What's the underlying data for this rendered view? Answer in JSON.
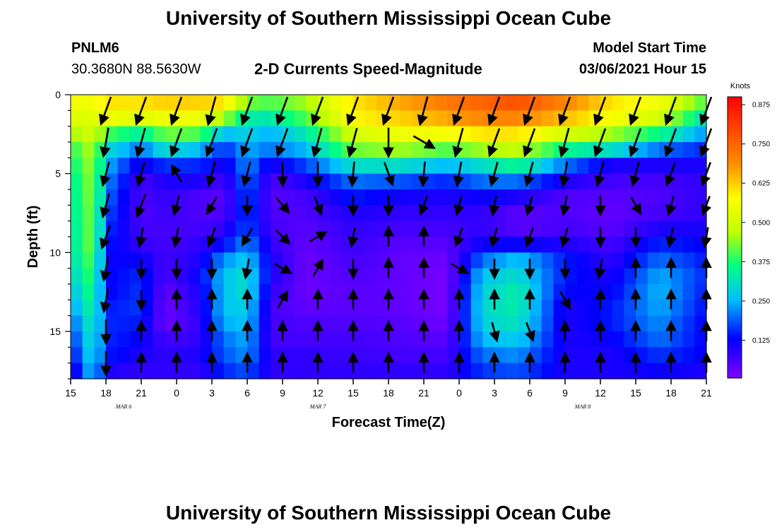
{
  "header": {
    "title_top": "University of Southern Mississippi Ocean Cube",
    "title_bottom": "University of Southern Mississippi Ocean Cube",
    "station_id": "PNLM6",
    "station_coords": "30.3680N 88.5630W",
    "plot_title": "2-D Currents Speed-Magnitude",
    "model_start_label": "Model Start Time",
    "model_start_value": "03/06/2021 Hour 15"
  },
  "chart_data": {
    "type": "heatmap",
    "title": "2-D Currents Speed-Magnitude",
    "xlabel": "Forecast Time(Z)",
    "ylabel": "Depth (ft)",
    "x_tick_labels": [
      "15",
      "18",
      "21",
      "0",
      "3",
      "6",
      "9",
      "12",
      "15",
      "18",
      "21",
      "0",
      "3",
      "6",
      "9",
      "12",
      "15",
      "18",
      "21"
    ],
    "x_range_hours": [
      0,
      54
    ],
    "date_labels": [
      {
        "text": "MAR 6",
        "hour": 4.5
      },
      {
        "text": "MAR 7",
        "hour": 21
      },
      {
        "text": "MAR 8",
        "hour": 43.5
      }
    ],
    "y_ticks": [
      0,
      5,
      10,
      15
    ],
    "y_range_ft": [
      0,
      18
    ],
    "colorbar": {
      "unit_label": "Knots",
      "tick_labels": [
        "0.875",
        "0.750",
        "0.625",
        "0.500",
        "0.375",
        "0.250",
        "0.125"
      ],
      "range": [
        0,
        0.9
      ]
    },
    "depths_ft": [
      0.5,
      1.5,
      2.5,
      3.5,
      4.5,
      5.5,
      6.5,
      7.5,
      8.5,
      9.5,
      10.5,
      11.5,
      12.5,
      13.5,
      14.5,
      15.5,
      16.5,
      17.5
    ],
    "speed_profiles": [
      {
        "hour": 0,
        "speeds": [
          0.56,
          0.52,
          0.45,
          0.38,
          0.35,
          0.33,
          0.32,
          0.32,
          0.31,
          0.31,
          0.3,
          0.28,
          0.25,
          0.22,
          0.18,
          0.15,
          0.12,
          0.08
        ]
      },
      {
        "hour": 2,
        "speeds": [
          0.55,
          0.52,
          0.5,
          0.47,
          0.46,
          0.45,
          0.45,
          0.44,
          0.44,
          0.44,
          0.42,
          0.4,
          0.38,
          0.36,
          0.34,
          0.32,
          0.3,
          0.28
        ]
      },
      {
        "hour": 3,
        "speeds": [
          0.6,
          0.55,
          0.4,
          0.3,
          0.25,
          0.22,
          0.2,
          0.18,
          0.16,
          0.14,
          0.12,
          0.12,
          0.12,
          0.14,
          0.15,
          0.15,
          0.14,
          0.1
        ]
      },
      {
        "hour": 6,
        "speeds": [
          0.6,
          0.52,
          0.33,
          0.2,
          0.1,
          0.06,
          0.05,
          0.05,
          0.06,
          0.08,
          0.12,
          0.15,
          0.16,
          0.16,
          0.14,
          0.12,
          0.1,
          0.08
        ]
      },
      {
        "hour": 8,
        "speeds": [
          0.62,
          0.55,
          0.42,
          0.3,
          0.16,
          0.1,
          0.08,
          0.07,
          0.06,
          0.06,
          0.06,
          0.05,
          0.03,
          0.02,
          0.02,
          0.06,
          0.08,
          0.08
        ]
      },
      {
        "hour": 11,
        "speeds": [
          0.62,
          0.55,
          0.4,
          0.25,
          0.15,
          0.1,
          0.05,
          0.05,
          0.06,
          0.08,
          0.1,
          0.12,
          0.1,
          0.09,
          0.08,
          0.08,
          0.1,
          0.08
        ]
      },
      {
        "hour": 13,
        "speeds": [
          0.6,
          0.45,
          0.25,
          0.15,
          0.1,
          0.06,
          0.04,
          0.05,
          0.08,
          0.13,
          0.22,
          0.26,
          0.26,
          0.26,
          0.24,
          0.2,
          0.18,
          0.15
        ]
      },
      {
        "hour": 15,
        "speeds": [
          0.42,
          0.33,
          0.28,
          0.24,
          0.22,
          0.2,
          0.18,
          0.17,
          0.18,
          0.22,
          0.27,
          0.3,
          0.3,
          0.28,
          0.26,
          0.24,
          0.22,
          0.18
        ]
      },
      {
        "hour": 17,
        "speeds": [
          0.4,
          0.32,
          0.24,
          0.2,
          0.1,
          0.05,
          0.04,
          0.05,
          0.06,
          0.08,
          0.1,
          0.1,
          0.08,
          0.06,
          0.06,
          0.06,
          0.08,
          0.08
        ]
      },
      {
        "hour": 20,
        "speeds": [
          0.45,
          0.4,
          0.32,
          0.25,
          0.17,
          0.1,
          0.06,
          0.05,
          0.04,
          0.03,
          0.02,
          0.02,
          0.02,
          0.03,
          0.05,
          0.06,
          0.08,
          0.08
        ]
      },
      {
        "hour": 24,
        "speeds": [
          0.6,
          0.58,
          0.5,
          0.42,
          0.3,
          0.2,
          0.14,
          0.1,
          0.08,
          0.07,
          0.06,
          0.05,
          0.04,
          0.04,
          0.05,
          0.06,
          0.07,
          0.08
        ]
      },
      {
        "hour": 28,
        "speeds": [
          0.66,
          0.62,
          0.55,
          0.45,
          0.3,
          0.18,
          0.11,
          0.08,
          0.06,
          0.04,
          0.03,
          0.03,
          0.03,
          0.03,
          0.04,
          0.05,
          0.06,
          0.08
        ]
      },
      {
        "hour": 32,
        "speeds": [
          0.72,
          0.66,
          0.56,
          0.4,
          0.25,
          0.15,
          0.1,
          0.08,
          0.06,
          0.04,
          0.02,
          0.01,
          0.01,
          0.01,
          0.02,
          0.04,
          0.06,
          0.08
        ]
      },
      {
        "hour": 35,
        "speeds": [
          0.75,
          0.7,
          0.6,
          0.45,
          0.3,
          0.2,
          0.12,
          0.08,
          0.08,
          0.12,
          0.2,
          0.26,
          0.28,
          0.29,
          0.28,
          0.25,
          0.2,
          0.16
        ]
      },
      {
        "hour": 38,
        "speeds": [
          0.78,
          0.7,
          0.6,
          0.48,
          0.35,
          0.2,
          0.1,
          0.04,
          0.04,
          0.12,
          0.26,
          0.3,
          0.33,
          0.33,
          0.31,
          0.27,
          0.22,
          0.18
        ]
      },
      {
        "hour": 42,
        "speeds": [
          0.7,
          0.64,
          0.5,
          0.35,
          0.2,
          0.1,
          0.05,
          0.05,
          0.06,
          0.1,
          0.14,
          0.14,
          0.12,
          0.1,
          0.1,
          0.1,
          0.1,
          0.1
        ]
      },
      {
        "hour": 46,
        "speeds": [
          0.6,
          0.56,
          0.45,
          0.3,
          0.1,
          0.06,
          0.04,
          0.03,
          0.04,
          0.06,
          0.08,
          0.1,
          0.12,
          0.14,
          0.14,
          0.12,
          0.1,
          0.1
        ]
      },
      {
        "hour": 50,
        "speeds": [
          0.55,
          0.5,
          0.35,
          0.2,
          0.1,
          0.06,
          0.05,
          0.06,
          0.1,
          0.15,
          0.2,
          0.24,
          0.25,
          0.24,
          0.22,
          0.2,
          0.16,
          0.12
        ]
      },
      {
        "hour": 54,
        "speeds": [
          0.4,
          0.3,
          0.22,
          0.15,
          0.1,
          0.08,
          0.08,
          0.08,
          0.1,
          0.12,
          0.14,
          0.15,
          0.14,
          0.13,
          0.12,
          0.12,
          0.12,
          0.1
        ]
      }
    ],
    "vector_hours": [
      3,
      6,
      9,
      12,
      15,
      18,
      21,
      24,
      27,
      30,
      33,
      36,
      39,
      42,
      45,
      48,
      51,
      54
    ],
    "vector_depths_ft": [
      1,
      3,
      5,
      7,
      9,
      11,
      13,
      15,
      17
    ],
    "vector_grid": [
      [
        [
          200,
          0.6
        ],
        [
          190,
          0.6
        ],
        [
          195,
          0.5
        ],
        [
          195,
          0.5
        ],
        [
          200,
          0.5
        ],
        [
          190,
          0.5
        ],
        [
          190,
          0.5
        ],
        [
          180,
          0.5
        ],
        [
          180,
          0.5
        ]
      ],
      [
        [
          200,
          0.6
        ],
        [
          195,
          0.6
        ],
        [
          195,
          0.5
        ],
        [
          200,
          0.5
        ],
        [
          190,
          0.4
        ],
        [
          180,
          0.4
        ],
        [
          180,
          0.4
        ],
        [
          0,
          0.4
        ],
        [
          0,
          0.4
        ]
      ],
      [
        [
          200,
          0.6
        ],
        [
          200,
          0.6
        ],
        [
          330,
          0.4
        ],
        [
          195,
          0.4
        ],
        [
          190,
          0.4
        ],
        [
          180,
          0.4
        ],
        [
          0,
          0.4
        ],
        [
          0,
          0.4
        ],
        [
          0,
          0.4
        ]
      ],
      [
        [
          195,
          0.6
        ],
        [
          200,
          0.6
        ],
        [
          195,
          0.5
        ],
        [
          210,
          0.4
        ],
        [
          200,
          0.4
        ],
        [
          180,
          0.4
        ],
        [
          0,
          0.4
        ],
        [
          0,
          0.4
        ],
        [
          0,
          0.4
        ]
      ],
      [
        [
          200,
          0.6
        ],
        [
          200,
          0.6
        ],
        [
          195,
          0.5
        ],
        [
          180,
          0.4
        ],
        [
          210,
          0.4
        ],
        [
          190,
          0.4
        ],
        [
          0,
          0.4
        ],
        [
          0,
          0.4
        ],
        [
          0,
          0.4
        ]
      ],
      [
        [
          200,
          0.6
        ],
        [
          200,
          0.6
        ],
        [
          180,
          0.5
        ],
        [
          140,
          0.4
        ],
        [
          135,
          0.4
        ],
        [
          120,
          0.4
        ],
        [
          30,
          0.4
        ],
        [
          0,
          0.4
        ],
        [
          0,
          0.4
        ]
      ],
      [
        [
          200,
          0.6
        ],
        [
          195,
          0.6
        ],
        [
          180,
          0.5
        ],
        [
          160,
          0.4
        ],
        [
          60,
          0.4
        ],
        [
          30,
          0.4
        ],
        [
          0,
          0.4
        ],
        [
          0,
          0.4
        ],
        [
          0,
          0.4
        ]
      ],
      [
        [
          200,
          0.6
        ],
        [
          195,
          0.6
        ],
        [
          185,
          0.5
        ],
        [
          180,
          0.4
        ],
        [
          190,
          0.4
        ],
        [
          180,
          0.4
        ],
        [
          0,
          0.4
        ],
        [
          0,
          0.4
        ],
        [
          0,
          0.4
        ]
      ],
      [
        [
          200,
          0.6
        ],
        [
          180,
          0.6
        ],
        [
          160,
          0.5
        ],
        [
          180,
          0.4
        ],
        [
          0,
          0.4
        ],
        [
          0,
          0.4
        ],
        [
          0,
          0.4
        ],
        [
          0,
          0.4
        ],
        [
          0,
          0.4
        ]
      ],
      [
        [
          195,
          0.6
        ],
        [
          120,
          0.5
        ],
        [
          185,
          0.5
        ],
        [
          200,
          0.4
        ],
        [
          0,
          0.4
        ],
        [
          0,
          0.4
        ],
        [
          0,
          0.4
        ],
        [
          0,
          0.4
        ],
        [
          0,
          0.4
        ]
      ],
      [
        [
          200,
          0.6
        ],
        [
          195,
          0.6
        ],
        [
          190,
          0.5
        ],
        [
          195,
          0.4
        ],
        [
          200,
          0.4
        ],
        [
          120,
          0.4
        ],
        [
          0,
          0.4
        ],
        [
          0,
          0.4
        ],
        [
          0,
          0.4
        ]
      ],
      [
        [
          200,
          0.6
        ],
        [
          200,
          0.6
        ],
        [
          195,
          0.5
        ],
        [
          190,
          0.4
        ],
        [
          195,
          0.4
        ],
        [
          180,
          0.4
        ],
        [
          0,
          0.4
        ],
        [
          165,
          0.4
        ],
        [
          0,
          0.4
        ]
      ],
      [
        [
          200,
          0.6
        ],
        [
          200,
          0.6
        ],
        [
          195,
          0.5
        ],
        [
          195,
          0.4
        ],
        [
          200,
          0.4
        ],
        [
          180,
          0.4
        ],
        [
          0,
          0.4
        ],
        [
          160,
          0.4
        ],
        [
          0,
          0.4
        ]
      ],
      [
        [
          200,
          0.6
        ],
        [
          195,
          0.6
        ],
        [
          190,
          0.5
        ],
        [
          190,
          0.4
        ],
        [
          195,
          0.4
        ],
        [
          180,
          0.4
        ],
        [
          150,
          0.4
        ],
        [
          0,
          0.4
        ],
        [
          0,
          0.4
        ]
      ],
      [
        [
          200,
          0.6
        ],
        [
          200,
          0.6
        ],
        [
          195,
          0.5
        ],
        [
          180,
          0.4
        ],
        [
          180,
          0.4
        ],
        [
          190,
          0.4
        ],
        [
          0,
          0.4
        ],
        [
          0,
          0.4
        ],
        [
          0,
          0.4
        ]
      ],
      [
        [
          200,
          0.6
        ],
        [
          200,
          0.6
        ],
        [
          195,
          0.5
        ],
        [
          150,
          0.4
        ],
        [
          180,
          0.4
        ],
        [
          0,
          0.4
        ],
        [
          0,
          0.4
        ],
        [
          0,
          0.4
        ],
        [
          0,
          0.4
        ]
      ],
      [
        [
          200,
          0.6
        ],
        [
          200,
          0.6
        ],
        [
          200,
          0.5
        ],
        [
          195,
          0.4
        ],
        [
          190,
          0.4
        ],
        [
          0,
          0.4
        ],
        [
          0,
          0.4
        ],
        [
          0,
          0.4
        ],
        [
          0,
          0.4
        ]
      ],
      [
        [
          200,
          0.6
        ],
        [
          200,
          0.6
        ],
        [
          200,
          0.5
        ],
        [
          200,
          0.4
        ],
        [
          190,
          0.4
        ],
        [
          0,
          0.4
        ],
        [
          0,
          0.4
        ],
        [
          0,
          0.4
        ],
        [
          0,
          0.4
        ]
      ]
    ]
  }
}
